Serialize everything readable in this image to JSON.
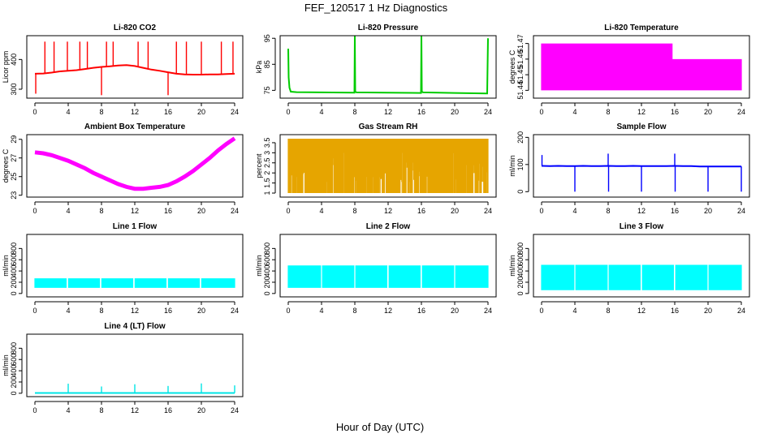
{
  "figure": {
    "title": "FEF_120517  1 Hz Diagnostics",
    "xlabel": "Hour of Day (UTC)"
  },
  "chart_data": [
    {
      "type": "line",
      "title": "Li-820 CO2",
      "xlabel": "",
      "ylabel": "Licor ppm",
      "xlim": [
        0,
        24
      ],
      "ylim": [
        270,
        480
      ],
      "xticks": [
        0,
        4,
        8,
        12,
        16,
        20,
        24
      ],
      "yticks": [
        300,
        400
      ],
      "grid": false,
      "series": [
        {
          "color": "#ff0000",
          "style": "line",
          "x": [
            0,
            1,
            2,
            3,
            4,
            5,
            6,
            7,
            8,
            9,
            10,
            11,
            12,
            13,
            14,
            15,
            16,
            17,
            18,
            19,
            20,
            21,
            22,
            23,
            24
          ],
          "y": [
            352,
            353,
            356,
            360,
            362,
            364,
            368,
            372,
            375,
            377,
            380,
            381,
            378,
            372,
            366,
            362,
            357,
            352,
            350,
            349,
            349,
            350,
            350,
            351,
            352
          ]
        }
      ],
      "spikes": [
        {
          "x": 0.1,
          "y": 285
        },
        {
          "x": 1.2,
          "y": 460
        },
        {
          "x": 2.3,
          "y": 460
        },
        {
          "x": 3.9,
          "y": 460
        },
        {
          "x": 5.4,
          "y": 460
        },
        {
          "x": 6.3,
          "y": 460
        },
        {
          "x": 8.0,
          "y": 280
        },
        {
          "x": 8.6,
          "y": 460
        },
        {
          "x": 9.4,
          "y": 460
        },
        {
          "x": 12.4,
          "y": 460
        },
        {
          "x": 13.6,
          "y": 460
        },
        {
          "x": 16.0,
          "y": 280
        },
        {
          "x": 17.0,
          "y": 460
        },
        {
          "x": 18.2,
          "y": 460
        },
        {
          "x": 20.0,
          "y": 460
        },
        {
          "x": 22.4,
          "y": 460
        },
        {
          "x": 23.8,
          "y": 460
        }
      ]
    },
    {
      "type": "line",
      "title": "Li-820 Pressure",
      "xlabel": "",
      "ylabel": "kPa",
      "xlim": [
        0,
        24
      ],
      "ylim": [
        72,
        96
      ],
      "xticks": [
        0,
        4,
        8,
        12,
        16,
        20,
        24
      ],
      "yticks": [
        75,
        85,
        95
      ],
      "grid": false,
      "series": [
        {
          "color": "#00cc00",
          "style": "line",
          "x": [
            0,
            0.05,
            0.15,
            0.3,
            1,
            4,
            7.95,
            8,
            8.05,
            8.2,
            12,
            15.95,
            16,
            16.05,
            16.2,
            20,
            23.9,
            24
          ],
          "y": [
            91,
            80,
            76,
            74.5,
            74.3,
            74.2,
            74.1,
            96,
            74.5,
            74.2,
            74.1,
            74.0,
            96,
            74.5,
            74.2,
            74.0,
            73.8,
            95
          ]
        }
      ]
    },
    {
      "type": "line",
      "title": "Li-820 Temperature",
      "xlabel": "",
      "ylabel": "degrees C",
      "xlim": [
        0,
        24
      ],
      "ylim": [
        51.435,
        51.475
      ],
      "xticks": [
        0,
        4,
        8,
        12,
        16,
        20,
        24
      ],
      "yticks": [
        51.44,
        51.45,
        51.46,
        51.47
      ],
      "grid": false,
      "series": [
        {
          "color": "#ff00ff",
          "style": "band",
          "x": [
            0,
            15.7,
            15.7,
            24
          ],
          "y_low": [
            51.44,
            51.44,
            51.44,
            51.44
          ],
          "y_high": [
            51.47,
            51.47,
            51.46,
            51.46
          ]
        }
      ]
    },
    {
      "type": "line",
      "title": "Ambient Box Temperature",
      "xlabel": "",
      "ylabel": "degrees C",
      "xlim": [
        0,
        24
      ],
      "ylim": [
        22.8,
        29.5
      ],
      "xticks": [
        0,
        4,
        8,
        12,
        16,
        20,
        24
      ],
      "yticks": [
        23,
        25,
        27,
        29
      ],
      "grid": false,
      "series": [
        {
          "color": "#ff00ff",
          "style": "line",
          "x": [
            0,
            1,
            2,
            3,
            4,
            5,
            6,
            7,
            8,
            9,
            10,
            11,
            12,
            13,
            14,
            15,
            16,
            17,
            18,
            19,
            20,
            21,
            22,
            23,
            24
          ],
          "y": [
            27.6,
            27.5,
            27.3,
            27.0,
            26.7,
            26.3,
            25.9,
            25.4,
            25.0,
            24.6,
            24.2,
            23.9,
            23.7,
            23.7,
            23.8,
            23.9,
            24.1,
            24.5,
            25.0,
            25.6,
            26.3,
            27.0,
            27.8,
            28.5,
            29.1
          ]
        }
      ]
    },
    {
      "type": "scatter",
      "title": "Gas Stream RH",
      "xlabel": "",
      "ylabel": "percent",
      "xlim": [
        0,
        24
      ],
      "ylim": [
        0.8,
        3.9
      ],
      "xticks": [
        0,
        4,
        8,
        12,
        16,
        20,
        24
      ],
      "yticks": [
        1.0,
        1.5,
        2.0,
        2.5,
        3.0,
        3.5
      ],
      "grid": false,
      "series": [
        {
          "color": "#e6a500",
          "style": "band",
          "x": [
            0,
            24
          ],
          "y_low": [
            1.0,
            1.0
          ],
          "y_high": [
            3.7,
            3.7
          ]
        }
      ]
    },
    {
      "type": "line",
      "title": "Sample Flow",
      "xlabel": "",
      "ylabel": "ml/min",
      "xlim": [
        0,
        24
      ],
      "ylim": [
        -20,
        210
      ],
      "xticks": [
        0,
        4,
        8,
        12,
        16,
        20,
        24
      ],
      "yticks": [
        0,
        100,
        200
      ],
      "grid": false,
      "series": [
        {
          "color": "#0000ff",
          "style": "line",
          "x": [
            0,
            1,
            2,
            3,
            4,
            5,
            6,
            7,
            8,
            9,
            10,
            11,
            12,
            13,
            14,
            15,
            16,
            17,
            18,
            19,
            20,
            21,
            22,
            23,
            24
          ],
          "y": [
            95,
            94,
            95,
            94,
            94,
            95,
            94,
            94,
            95,
            94,
            94,
            95,
            94,
            94,
            94,
            94,
            95,
            94,
            94,
            93,
            93,
            93,
            93,
            93,
            93
          ]
        }
      ],
      "spikes": [
        {
          "x": 0.05,
          "y": 135
        },
        {
          "x": 4.0,
          "y": 0
        },
        {
          "x": 8.0,
          "y": 140
        },
        {
          "x": 8.05,
          "y": 0
        },
        {
          "x": 12.0,
          "y": 0
        },
        {
          "x": 16.0,
          "y": 140
        },
        {
          "x": 16.05,
          "y": 0
        },
        {
          "x": 20.0,
          "y": 0
        },
        {
          "x": 24.0,
          "y": 0
        }
      ]
    },
    {
      "type": "line",
      "title": "Line 1 Flow",
      "xlabel": "",
      "ylabel": "ml/min",
      "xlim": [
        0,
        24
      ],
      "ylim": [
        -60,
        1050
      ],
      "xticks": [
        0,
        4,
        8,
        12,
        16,
        20,
        24
      ],
      "yticks": [
        0,
        200,
        400,
        600,
        800
      ],
      "grid": false,
      "series": [
        {
          "color": "#00ffff",
          "style": "band",
          "x": [
            0,
            24
          ],
          "y_low": [
            100,
            100
          ],
          "y_high": [
            270,
            270
          ]
        }
      ],
      "gaps": [
        3.9,
        7.9,
        11.9,
        15.9,
        19.9
      ]
    },
    {
      "type": "line",
      "title": "Line 2 Flow",
      "xlabel": "",
      "ylabel": "ml/min",
      "xlim": [
        0,
        24
      ],
      "ylim": [
        -60,
        1050
      ],
      "xticks": [
        0,
        4,
        8,
        12,
        16,
        20,
        24
      ],
      "yticks": [
        0,
        200,
        400,
        600,
        800
      ],
      "grid": false,
      "series": [
        {
          "color": "#00ffff",
          "style": "band",
          "x": [
            0,
            24
          ],
          "y_low": [
            100,
            100
          ],
          "y_high": [
            500,
            500
          ]
        }
      ],
      "gaps": [
        4.0,
        8.0,
        12.0,
        16.0,
        20.0
      ]
    },
    {
      "type": "line",
      "title": "Line 3 Flow",
      "xlabel": "",
      "ylabel": "ml/min",
      "xlim": [
        0,
        24
      ],
      "ylim": [
        -60,
        1050
      ],
      "xticks": [
        0,
        4,
        8,
        12,
        16,
        20,
        24
      ],
      "yticks": [
        0,
        200,
        400,
        600,
        800
      ],
      "grid": false,
      "series": [
        {
          "color": "#00ffff",
          "style": "band",
          "x": [
            0,
            24
          ],
          "y_low": [
            60,
            60
          ],
          "y_high": [
            510,
            510
          ]
        }
      ],
      "gaps": [
        4.0,
        8.0,
        12.0,
        16.0,
        20.0
      ]
    },
    {
      "type": "line",
      "title": "Line 4 (LT) Flow",
      "xlabel": "",
      "ylabel": "ml/min",
      "xlim": [
        0,
        24
      ],
      "ylim": [
        -60,
        1050
      ],
      "xticks": [
        0,
        4,
        8,
        12,
        16,
        20,
        24
      ],
      "yticks": [
        0,
        200,
        400,
        600,
        800
      ],
      "grid": false,
      "series": [
        {
          "color": "#00e5e5",
          "style": "line",
          "x": [
            0,
            4,
            8,
            12,
            16,
            20,
            24
          ],
          "y": [
            5,
            5,
            5,
            5,
            5,
            5,
            5
          ]
        }
      ],
      "spikes": [
        {
          "x": 4.0,
          "y": 170
        },
        {
          "x": 8.0,
          "y": 120
        },
        {
          "x": 12.0,
          "y": 160
        },
        {
          "x": 16.0,
          "y": 130
        },
        {
          "x": 20.0,
          "y": 175
        },
        {
          "x": 24.0,
          "y": 140
        }
      ]
    }
  ]
}
